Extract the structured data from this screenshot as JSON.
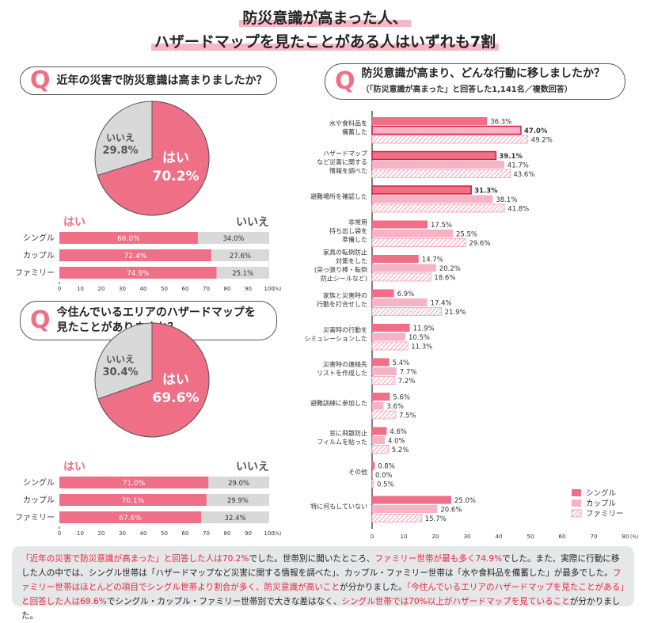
{
  "title": {
    "line1": "防災意識が高まった人、",
    "line2": "ハザードマップを見たことがある人はいずれも7割"
  },
  "colors": {
    "single": "#ee6f86",
    "couple": "#f7b3c6",
    "family_stroke": "#ee6f86",
    "no": "#d9d9da",
    "highlight": "#e8253d"
  },
  "q_mark": "Q",
  "q1": {
    "question": "近年の災害で防災意識は高まりましたか？",
    "pie": {
      "yes_label": "はい",
      "yes_value": "70.2%",
      "yes": 70.2,
      "no_label": "いいえ",
      "no_value": "29.8%",
      "no": 29.8
    },
    "bar_yes_label": "はい",
    "bar_no_label": "いいえ",
    "rows": [
      {
        "name": "シングル",
        "yes": 66.0,
        "yes_text": "66.0%",
        "no_text": "34.0%"
      },
      {
        "name": "カップル",
        "yes": 72.4,
        "yes_text": "72.4%",
        "no_text": "27.6%"
      },
      {
        "name": "ファミリー",
        "yes": 74.9,
        "yes_text": "74.9%",
        "no_text": "25.1%"
      }
    ]
  },
  "q2": {
    "question_line1": "今住んでいるエリアのハザードマップを",
    "question_line2": "見たことがありますか？",
    "pie": {
      "yes_label": "はい",
      "yes_value": "69.6%",
      "yes": 69.6,
      "no_label": "いいえ",
      "no_value": "30.4%",
      "no": 30.4
    },
    "bar_yes_label": "はい",
    "bar_no_label": "いいえ",
    "rows": [
      {
        "name": "シングル",
        "yes": 71.0,
        "yes_text": "71.0%",
        "no_text": "29.0%"
      },
      {
        "name": "カップル",
        "yes": 70.1,
        "yes_text": "70.1%",
        "no_text": "29.9%"
      },
      {
        "name": "ファミリー",
        "yes": 67.6,
        "yes_text": "67.6%",
        "no_text": "32.4%"
      }
    ]
  },
  "pct_axis": {
    "ticks": [
      "0",
      "10",
      "20",
      "30",
      "40",
      "50",
      "60",
      "70",
      "80",
      "90",
      "100"
    ],
    "unit": "(%)"
  },
  "chart_data": {
    "type": "bar",
    "title": "防災意識が高まり、どんな行動に移しましたか？",
    "subtitle": "（「防災意識が高まった」と回答した1,141名／複数回答）",
    "categories": [
      [
        "水や食料品を",
        "備蓄した"
      ],
      [
        "ハザードマップ",
        "など災害に関する",
        "情報を調べた"
      ],
      [
        "避難場所を確認した"
      ],
      [
        "非常用",
        "持ち出し袋を",
        "準備した"
      ],
      [
        "家具の転倒防止",
        "対策をした",
        "(突っ張り棒・転倒",
        "防止シールなど)"
      ],
      [
        "家族と災害時の",
        "行動を打合せした"
      ],
      [
        "災害時の行動を",
        "シミュレーションした"
      ],
      [
        "災害時の連絡先",
        "リストを作成した"
      ],
      [
        "避難訓練に参加した"
      ],
      [
        "窓に飛散防止",
        "フィルムを貼った"
      ],
      [
        "その他"
      ],
      [
        "特に何もしていない"
      ]
    ],
    "series": [
      {
        "name": "シングル",
        "values": [
          36.3,
          39.1,
          31.3,
          17.5,
          14.7,
          6.9,
          11.9,
          5.4,
          5.6,
          4.6,
          0.8,
          25.0
        ]
      },
      {
        "name": "カップル",
        "values": [
          47.0,
          41.7,
          38.1,
          25.5,
          20.2,
          17.4,
          10.5,
          7.7,
          3.6,
          4.0,
          0.0,
          20.6
        ]
      },
      {
        "name": "ファミリー",
        "values": [
          49.2,
          43.6,
          41.8,
          29.6,
          18.6,
          21.9,
          11.3,
          7.2,
          7.5,
          5.2,
          0.5,
          15.7
        ]
      }
    ],
    "highlighted": [
      [
        0,
        1
      ],
      [
        0,
        2
      ],
      [
        1,
        0
      ]
    ],
    "xlim": [
      0,
      80
    ],
    "ticks": [
      "0",
      "10",
      "20",
      "30",
      "40",
      "50",
      "60",
      "70",
      "80"
    ],
    "unit": "(%)",
    "legend": "bottom-right"
  },
  "note": [
    {
      "t": "「近年の災害で防災意識が高まった」と回答した人は70.2%",
      "h": true
    },
    {
      "t": "でした。世帯別に聞いたところ、",
      "h": false
    },
    {
      "t": "ファミリー世帯が最も多く74.9%",
      "h": true
    },
    {
      "t": "でした。また、実際に行動に移した人の中では、シングル世帯は「ハザードマップなど災害に関する情報を調べた」、カップル・ファミリー世帯は「水や食料品を備蓄した」が最多でした。",
      "h": false
    },
    {
      "t": "ファミリー世帯はほとんどの項目でシングル世帯より割合が多く、防災意識が高いこと",
      "h": true
    },
    {
      "t": "が分かりました。",
      "h": false
    },
    {
      "t": "「今住んでいるエリアのハザードマップを見たことがある」と回答した人は69.6%",
      "h": true
    },
    {
      "t": "でシングル・カップル・ファミリー世帯別で大きな差はなく、",
      "h": false
    },
    {
      "t": "シングル世帯では70%以上がハザードマップを見ていること",
      "h": true
    },
    {
      "t": "が分かりました。",
      "h": false
    }
  ]
}
